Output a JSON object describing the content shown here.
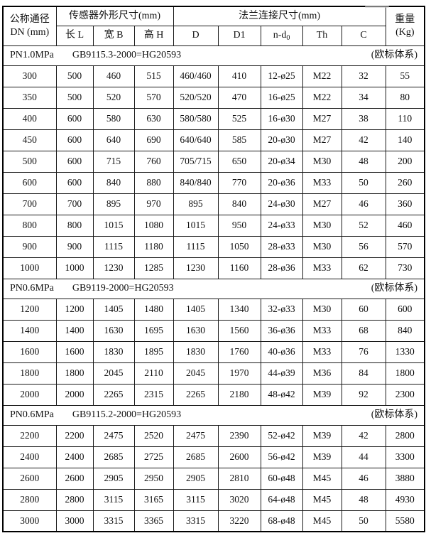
{
  "table": {
    "header": {
      "dn_title": "公称通径",
      "dn_unit": "DN (mm)",
      "sensor_group": "传感器外形尺寸(mm)",
      "flange_group": "法兰连接尺寸(mm)",
      "weight_title": "重量",
      "weight_unit": "(Kg)",
      "length": "长 L",
      "width": "宽 B",
      "height": "高 H",
      "d": "D",
      "d1": "D1",
      "nd_base": "n-d",
      "nd_sub": "0",
      "th": "Th",
      "c": "C"
    },
    "sections": [
      {
        "pressure": "PN1.0MPa",
        "standard": "GB9115.3-2000=HG20593",
        "note": "(欧标体系)",
        "rows": [
          [
            "300",
            "500",
            "460",
            "515",
            "460/460",
            "410",
            "12-ø25",
            "M22",
            "32",
            "55"
          ],
          [
            "350",
            "500",
            "520",
            "570",
            "520/520",
            "470",
            "16-ø25",
            "M22",
            "34",
            "80"
          ],
          [
            "400",
            "600",
            "580",
            "630",
            "580/580",
            "525",
            "16-ø30",
            "M27",
            "38",
            "110"
          ],
          [
            "450",
            "600",
            "640",
            "690",
            "640/640",
            "585",
            "20-ø30",
            "M27",
            "42",
            "140"
          ],
          [
            "500",
            "600",
            "715",
            "760",
            "705/715",
            "650",
            "20-ø34",
            "M30",
            "48",
            "200"
          ],
          [
            "600",
            "600",
            "840",
            "880",
            "840/840",
            "770",
            "20-ø36",
            "M33",
            "50",
            "260"
          ],
          [
            "700",
            "700",
            "895",
            "970",
            "895",
            "840",
            "24-ø30",
            "M27",
            "46",
            "360"
          ],
          [
            "800",
            "800",
            "1015",
            "1080",
            "1015",
            "950",
            "24-ø33",
            "M30",
            "52",
            "460"
          ],
          [
            "900",
            "900",
            "1115",
            "1180",
            "1115",
            "1050",
            "28-ø33",
            "M30",
            "56",
            "570"
          ],
          [
            "1000",
            "1000",
            "1230",
            "1285",
            "1230",
            "1160",
            "28-ø36",
            "M33",
            "62",
            "730"
          ]
        ]
      },
      {
        "pressure": "PN0.6MPa",
        "standard": "GB9119-2000=HG20593",
        "note": "(欧标体系)",
        "rows": [
          [
            "1200",
            "1200",
            "1405",
            "1480",
            "1405",
            "1340",
            "32-ø33",
            "M30",
            "60",
            "600"
          ],
          [
            "1400",
            "1400",
            "1630",
            "1695",
            "1630",
            "1560",
            "36-ø36",
            "M33",
            "68",
            "840"
          ],
          [
            "1600",
            "1600",
            "1830",
            "1895",
            "1830",
            "1760",
            "40-ø36",
            "M33",
            "76",
            "1330"
          ],
          [
            "1800",
            "1800",
            "2045",
            "2110",
            "2045",
            "1970",
            "44-ø39",
            "M36",
            "84",
            "1800"
          ],
          [
            "2000",
            "2000",
            "2265",
            "2315",
            "2265",
            "2180",
            "48-ø42",
            "M39",
            "92",
            "2300"
          ]
        ]
      },
      {
        "pressure": "PN0.6MPa",
        "standard": "GB9115.2-2000=HG20593",
        "note": "(欧标体系)",
        "rows": [
          [
            "2200",
            "2200",
            "2475",
            "2520",
            "2475",
            "2390",
            "52-ø42",
            "M39",
            "42",
            "2800"
          ],
          [
            "2400",
            "2400",
            "2685",
            "2725",
            "2685",
            "2600",
            "56-ø42",
            "M39",
            "44",
            "3300"
          ],
          [
            "2600",
            "2600",
            "2905",
            "2950",
            "2905",
            "2810",
            "60-ø48",
            "M45",
            "46",
            "3880"
          ],
          [
            "2800",
            "2800",
            "3115",
            "3165",
            "3115",
            "3020",
            "64-ø48",
            "M45",
            "48",
            "4930"
          ],
          [
            "3000",
            "3000",
            "3315",
            "3365",
            "3315",
            "3220",
            "68-ø48",
            "M45",
            "50",
            "5580"
          ]
        ]
      }
    ]
  }
}
